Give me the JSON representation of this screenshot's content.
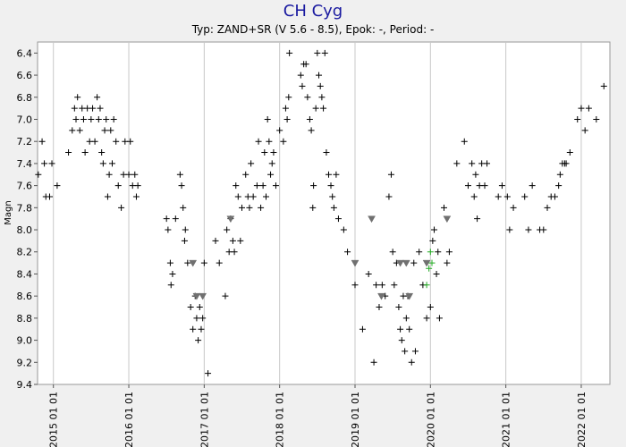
{
  "chart_data": {
    "type": "scatter",
    "title": "CH Cyg",
    "subtitle": "Typ: ZAND+SR (V 5.6 - 8.5), Epok: -, Period: -",
    "y_label": "Magn",
    "xlim": [
      2014.79,
      2022.38
    ],
    "ylim": [
      6.3,
      9.4
    ],
    "y_inverted": true,
    "grid": true,
    "xticks": [
      {
        "value": 2015,
        "label": "2015 01 01"
      },
      {
        "value": 2016,
        "label": "2016 01 01"
      },
      {
        "value": 2017,
        "label": "2017 01 01"
      },
      {
        "value": 2018,
        "label": "2018 01 01"
      },
      {
        "value": 2019,
        "label": "2019 01 01"
      },
      {
        "value": 2020,
        "label": "2020 01 01"
      },
      {
        "value": 2021,
        "label": "2021 01 01"
      },
      {
        "value": 2022,
        "label": "2022 01 01"
      }
    ],
    "yticks": [
      6.4,
      6.6,
      6.8,
      {
        "value": 7,
        "label": "7.0"
      },
      7.2,
      7.4,
      7.6,
      7.8,
      {
        "value": 8,
        "label": "8.0"
      },
      8.2,
      8.4,
      8.6,
      8.8,
      {
        "value": 9,
        "label": "9.0"
      },
      9.2,
      9.4
    ],
    "series": [
      {
        "color": "#000000",
        "marker": "plus",
        "x": [
          2014.8,
          2014.85,
          2014.88,
          2014.9,
          2014.95,
          2014.98,
          2015.05,
          2015.2,
          2015.25,
          2015.28,
          2015.3,
          2015.32,
          2015.35,
          2015.38,
          2015.4,
          2015.42,
          2015.45,
          2015.48,
          2015.5,
          2015.52,
          2015.55,
          2015.58,
          2015.6,
          2015.62,
          2015.64,
          2015.66,
          2015.68,
          2015.7,
          2015.72,
          2015.74,
          2015.76,
          2015.78,
          2015.8,
          2015.83,
          2015.86,
          2015.9,
          2015.93,
          2015.95,
          2016.0,
          2016.02,
          2016.05,
          2016.08,
          2016.1,
          2016.12,
          2016.5,
          2016.52,
          2016.55,
          2016.56,
          2016.58,
          2016.62,
          2016.68,
          2016.7,
          2016.72,
          2016.74,
          2016.75,
          2016.78,
          2016.82,
          2016.85,
          2016.88,
          2016.9,
          2016.92,
          2016.94,
          2016.96,
          2016.98,
          2017.0,
          2017.05,
          2017.15,
          2017.2,
          2017.28,
          2017.3,
          2017.33,
          2017.35,
          2017.38,
          2017.4,
          2017.42,
          2017.45,
          2017.48,
          2017.5,
          2017.55,
          2017.58,
          2017.6,
          2017.62,
          2017.65,
          2017.7,
          2017.72,
          2017.75,
          2017.78,
          2017.8,
          2017.82,
          2017.84,
          2017.86,
          2017.88,
          2017.9,
          2017.92,
          2017.95,
          2018.0,
          2018.05,
          2018.08,
          2018.1,
          2018.12,
          2018.13,
          2018.28,
          2018.3,
          2018.32,
          2018.35,
          2018.37,
          2018.4,
          2018.42,
          2018.44,
          2018.45,
          2018.48,
          2018.5,
          2018.52,
          2018.54,
          2018.56,
          2018.58,
          2018.6,
          2018.62,
          2018.65,
          2018.68,
          2018.7,
          2018.72,
          2018.75,
          2018.78,
          2018.85,
          2018.9,
          2019.0,
          2019.1,
          2019.18,
          2019.25,
          2019.28,
          2019.32,
          2019.36,
          2019.4,
          2019.45,
          2019.48,
          2019.5,
          2019.52,
          2019.55,
          2019.58,
          2019.6,
          2019.62,
          2019.64,
          2019.66,
          2019.68,
          2019.7,
          2019.72,
          2019.75,
          2019.78,
          2019.8,
          2019.85,
          2019.9,
          2019.95,
          2020.0,
          2020.03,
          2020.05,
          2020.08,
          2020.1,
          2020.12,
          2020.18,
          2020.22,
          2020.25,
          2020.35,
          2020.45,
          2020.5,
          2020.55,
          2020.58,
          2020.6,
          2020.62,
          2020.65,
          2020.68,
          2020.72,
          2020.75,
          2020.9,
          2020.95,
          2021.02,
          2021.05,
          2021.1,
          2021.25,
          2021.3,
          2021.35,
          2021.45,
          2021.5,
          2021.55,
          2021.6,
          2021.65,
          2021.7,
          2021.72,
          2021.75,
          2021.78,
          2021.8,
          2021.85,
          2021.95,
          2022.0,
          2022.05,
          2022.1,
          2022.2,
          2022.3
        ],
        "values": [
          7.5,
          7.2,
          7.4,
          7.7,
          7.7,
          7.4,
          7.6,
          7.3,
          7.1,
          6.9,
          7.0,
          6.8,
          7.1,
          6.9,
          7.0,
          7.3,
          6.9,
          7.2,
          7.0,
          6.9,
          7.2,
          6.8,
          7.0,
          6.9,
          7.3,
          7.4,
          7.1,
          7.0,
          7.7,
          7.5,
          7.1,
          7.4,
          7.0,
          7.2,
          7.6,
          7.8,
          7.5,
          7.2,
          7.5,
          7.2,
          7.6,
          7.5,
          7.7,
          7.6,
          7.9,
          8.0,
          8.3,
          8.5,
          8.4,
          7.9,
          7.5,
          7.6,
          7.8,
          8.1,
          8.0,
          8.3,
          8.7,
          8.9,
          8.6,
          8.8,
          9.0,
          8.7,
          8.9,
          8.8,
          8.3,
          9.3,
          8.1,
          8.3,
          8.6,
          8.0,
          8.2,
          7.9,
          8.1,
          8.2,
          7.6,
          7.7,
          8.1,
          7.8,
          7.5,
          7.7,
          7.8,
          7.4,
          7.7,
          7.6,
          7.2,
          7.8,
          7.6,
          7.3,
          7.7,
          7.0,
          7.2,
          7.5,
          7.4,
          7.3,
          7.6,
          7.1,
          7.2,
          6.9,
          7.0,
          6.8,
          6.4,
          6.6,
          6.7,
          6.5,
          6.5,
          6.8,
          7.0,
          7.1,
          7.8,
          7.6,
          6.9,
          6.4,
          6.6,
          6.7,
          6.8,
          6.9,
          6.4,
          7.3,
          7.5,
          7.6,
          7.7,
          7.8,
          7.5,
          7.9,
          8.0,
          8.2,
          8.5,
          8.9,
          8.4,
          9.2,
          8.5,
          8.7,
          8.5,
          8.6,
          7.7,
          7.5,
          8.2,
          8.5,
          8.3,
          8.7,
          8.9,
          9.0,
          8.6,
          9.1,
          8.8,
          8.6,
          8.9,
          9.2,
          8.3,
          9.1,
          8.2,
          8.5,
          8.8,
          8.7,
          8.1,
          8.0,
          8.4,
          8.2,
          8.8,
          7.8,
          8.3,
          8.2,
          7.4,
          7.2,
          7.6,
          7.4,
          7.7,
          7.5,
          7.9,
          7.6,
          7.4,
          7.6,
          7.4,
          7.7,
          7.6,
          7.7,
          8.0,
          7.8,
          7.7,
          8.0,
          7.6,
          8.0,
          8.0,
          7.8,
          7.7,
          7.7,
          7.6,
          7.5,
          7.4,
          7.4,
          7.4,
          7.3,
          7.0,
          6.9,
          7.1,
          6.9,
          7.0,
          6.7
        ]
      },
      {
        "color": "#707070",
        "marker": "triangle-down",
        "x": [
          2016.85,
          2016.9,
          2016.98,
          2017.35,
          2019.0,
          2019.22,
          2019.35,
          2019.6,
          2019.68,
          2019.72,
          2019.95,
          2020.22
        ],
        "values": [
          8.3,
          8.6,
          8.6,
          7.9,
          8.3,
          7.9,
          8.6,
          8.3,
          8.3,
          8.6,
          8.3,
          7.9
        ]
      },
      {
        "color": "#22aa22",
        "marker": "plus",
        "x": [
          2019.95,
          2019.98,
          2020.0,
          2020.02
        ],
        "values": [
          8.5,
          8.35,
          8.2,
          8.3
        ]
      }
    ]
  }
}
